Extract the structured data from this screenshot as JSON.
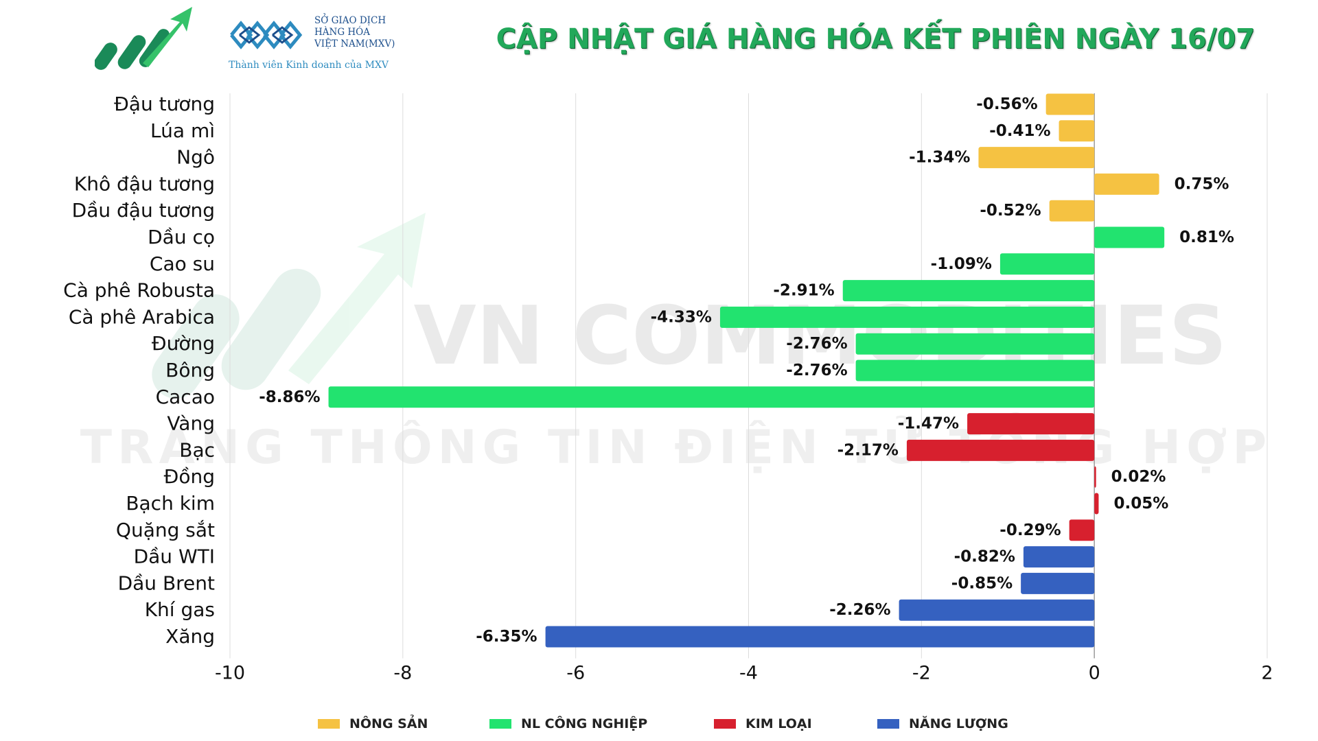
{
  "header": {
    "title": "CẬP NHẬT GIÁ HÀNG HÓA KẾT PHIÊN NGÀY 16/07",
    "org_line1": "SỞ GIAO DỊCH",
    "org_line2": "HÀNG HÓA",
    "org_line3": "VIỆT NAM(MXV)",
    "org_tagline": "Thành viên Kinh doanh của MXV",
    "logo_icon": "growth-arrow-logo",
    "org_logo_icon": "mxv-logo"
  },
  "watermark": {
    "line1": "VN COMMODITIES",
    "line2": "TRANG THÔNG TIN ĐIỆN TỬ TỔNG HỢP"
  },
  "legend": [
    {
      "label": "NÔNG SẢN",
      "color": "#f5c242"
    },
    {
      "label": "NL CÔNG NGHIỆP",
      "color": "#22e36f"
    },
    {
      "label": "KIM LOẠI",
      "color": "#d7202e"
    },
    {
      "label": "NĂNG LƯỢNG",
      "color": "#3561c0"
    }
  ],
  "chart_data": {
    "type": "bar",
    "orientation": "horizontal",
    "categories": [
      "Đậu tương",
      "Lúa mì",
      "Ngô",
      "Khô đậu tương",
      "Dầu đậu tương",
      "Dầu cọ",
      "Cao su",
      "Cà phê Robusta",
      "Cà phê Arabica",
      "Đường",
      "Bông",
      "Cacao",
      "Vàng",
      "Bạc",
      "Đồng",
      "Bạch kim",
      "Quặng sắt",
      "Dầu WTI",
      "Dầu Brent",
      "Khí gas",
      "Xăng"
    ],
    "values": [
      -0.56,
      -0.41,
      -1.34,
      0.75,
      -0.52,
      0.81,
      -1.09,
      -2.91,
      -4.33,
      -2.76,
      -2.76,
      -8.86,
      -1.47,
      -2.17,
      0.02,
      0.05,
      -0.29,
      -0.82,
      -0.85,
      -2.26,
      -6.35
    ],
    "labels": [
      "-0.56%",
      "-0.41%",
      "-1.34%",
      "0.75%",
      "-0.52%",
      "0.81%",
      "-1.09%",
      "-2.91%",
      "-4.33%",
      "-2.76%",
      "-2.76%",
      "-8.86%",
      "-1.47%",
      "-2.17%",
      "0.02%",
      "0.05%",
      "-0.29%",
      "-0.82%",
      "-0.85%",
      "-2.26%",
      "-6.35%"
    ],
    "groups": [
      0,
      0,
      0,
      0,
      0,
      1,
      1,
      1,
      1,
      1,
      1,
      1,
      2,
      2,
      2,
      2,
      2,
      3,
      3,
      3,
      3
    ],
    "xlim": [
      -10,
      2
    ],
    "xticks": [
      -10,
      -8,
      -6,
      -4,
      -2,
      0,
      2
    ],
    "xtick_labels": [
      "-10",
      "-8",
      "-6",
      "-4",
      "-2",
      "0",
      "2"
    ],
    "grid": true,
    "legend_position": "bottom"
  }
}
